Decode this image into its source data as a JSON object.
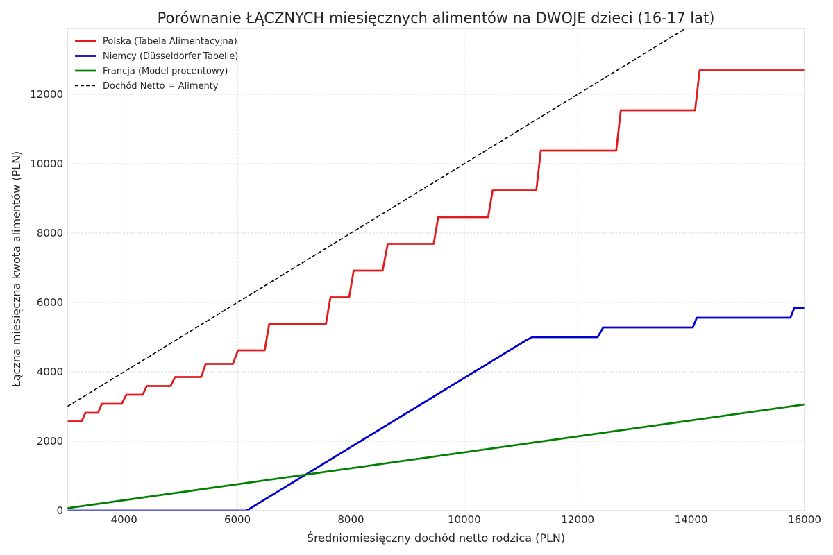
{
  "chart_data": {
    "type": "line",
    "title": "Porównanie ŁĄCZNYCH miesięcznych alimentów na DWOJE dzieci (16-17 lat)",
    "xlabel": "Średniomiesięczny dochód netto rodzica (PLN)",
    "ylabel": "Łączna miesięczna kwota alimentów (PLN)",
    "xlim": [
      3000,
      16000
    ],
    "ylim": [
      0,
      13900
    ],
    "xticks": [
      4000,
      6000,
      8000,
      10000,
      12000,
      14000,
      16000
    ],
    "yticks": [
      0,
      2000,
      4000,
      6000,
      8000,
      10000,
      12000
    ],
    "grid": true,
    "legend_position": "top-left",
    "series": [
      {
        "name": "Polska (Tabela Alimentacyjna)",
        "color": "#e41a1c",
        "style": "solid",
        "x": [
          3000,
          3250,
          3320,
          3540,
          3610,
          3960,
          4040,
          4330,
          4400,
          4820,
          4900,
          5360,
          5440,
          5920,
          6010,
          6480,
          6560,
          7560,
          7640,
          7970,
          8050,
          8560,
          8650,
          9460,
          9540,
          10420,
          10500,
          11270,
          11350,
          12680,
          12760,
          14070,
          14150,
          16000
        ],
        "y": [
          2570,
          2570,
          2820,
          2820,
          3080,
          3080,
          3340,
          3340,
          3590,
          3590,
          3850,
          3850,
          4230,
          4230,
          4620,
          4620,
          5380,
          5380,
          6150,
          6150,
          6920,
          6920,
          7690,
          7690,
          8460,
          8460,
          9230,
          9230,
          10380,
          10380,
          11540,
          11540,
          12690,
          12690
        ]
      },
      {
        "name": "Niemcy (Düsseldorfer Tabelle)",
        "color": "#0000cd",
        "style": "solid",
        "x": [
          3000,
          6150,
          6200,
          11100,
          11200,
          12350,
          12450,
          14030,
          14100,
          15750,
          15820,
          16000
        ],
        "y": [
          0,
          0,
          40,
          4920,
          5000,
          5000,
          5280,
          5280,
          5560,
          5560,
          5840,
          5840
        ]
      },
      {
        "name": "Francja (Model procentowy)",
        "color": "#008000",
        "style": "solid",
        "x": [
          3000,
          16000
        ],
        "y": [
          70,
          3060
        ]
      },
      {
        "name": "Dochód Netto = Alimenty",
        "color": "#000000",
        "style": "dashed",
        "x": [
          3000,
          16000
        ],
        "y": [
          3000,
          16000
        ]
      }
    ]
  }
}
